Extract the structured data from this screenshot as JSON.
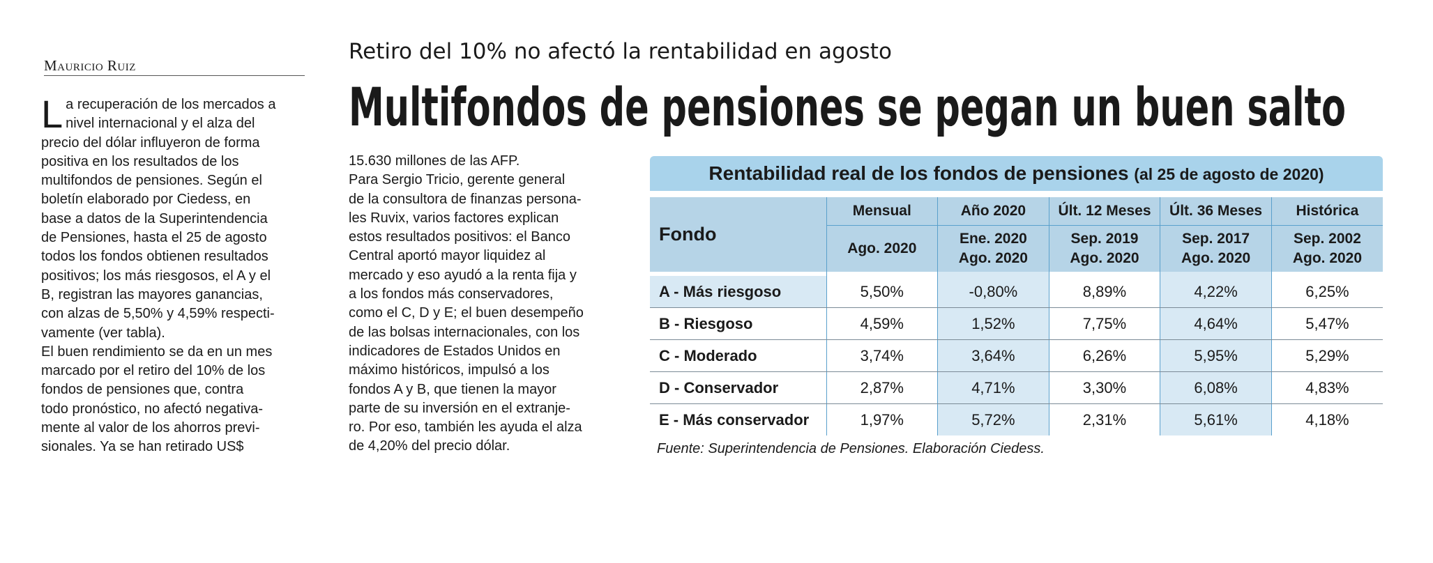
{
  "byline": "Mauricio Ruiz",
  "kicker": "Retiro del 10% no afectó la rentabilidad en agosto",
  "headline": "Multifondos de pensiones se pegan un buen salto",
  "column1": {
    "dropcap": "L",
    "lines": [
      "a recuperación de los mercados a",
      "nivel internacional y el alza del",
      "precio del dólar influyeron de forma",
      "positiva en los resultados de los",
      "multifondos de pensiones. Según el",
      "boletín elaborado por Ciedess, en",
      "base a datos de la Superintendencia",
      "de Pensiones, hasta el 25 de agosto",
      "todos los fondos obtienen resultados",
      "positivos; los más riesgosos, el A y el",
      "B, registran las mayores ganancias,",
      "con alzas de 5,50% y 4,59% respecti-",
      "vamente (ver tabla).",
      "El buen rendimiento se da en un mes",
      "marcado por el retiro del 10% de los",
      "fondos de pensiones que, contra",
      "todo pronóstico, no afectó negativa-",
      "mente al valor de los ahorros previ-",
      "sionales. Ya se han retirado US$"
    ]
  },
  "column2": {
    "lines": [
      "15.630 millones de las AFP.",
      "Para Sergio Tricio, gerente general",
      "de la consultora de finanzas persona-",
      "les Ruvix, varios factores explican",
      "estos resultados positivos: el Banco",
      "Central aportó mayor liquidez al",
      "mercado y eso ayudó a la renta fija y",
      "a los fondos más conservadores,",
      "como el C, D y E; el buen desempeño",
      "de las bolsas internacionales, con los",
      "indicadores de Estados Unidos en",
      "máximo históricos, impulsó a los",
      "fondos A y B, que tienen la mayor",
      "parte de su inversión en el extranje-",
      "ro. Por eso, también les ayuda el alza",
      "de 4,20% del precio dólar."
    ]
  },
  "table": {
    "title": "Rentabilidad real de los fondos de pensiones",
    "subtitle": "(al 25 de agosto de 2020)",
    "fondo_header": "Fondo",
    "columns": [
      {
        "top": "Mensual",
        "bottom": [
          "Ago. 2020"
        ]
      },
      {
        "top": "Año 2020",
        "bottom": [
          "Ene. 2020",
          "Ago. 2020"
        ]
      },
      {
        "top": "Últ. 12 Meses",
        "bottom": [
          "Sep. 2019",
          "Ago. 2020"
        ]
      },
      {
        "top": "Últ. 36 Meses",
        "bottom": [
          "Sep. 2017",
          "Ago. 2020"
        ]
      },
      {
        "top": "Histórica",
        "bottom": [
          "Sep. 2002",
          "Ago. 2020"
        ]
      }
    ],
    "rows": [
      {
        "label": "A - Más riesgoso",
        "values": [
          "5,50%",
          "-0,80%",
          "8,89%",
          "4,22%",
          "6,25%"
        ]
      },
      {
        "label": "B - Riesgoso",
        "values": [
          "4,59%",
          "1,52%",
          "7,75%",
          "4,64%",
          "5,47%"
        ]
      },
      {
        "label": "C - Moderado",
        "values": [
          "3,74%",
          "3,64%",
          "6,26%",
          "5,95%",
          "5,29%"
        ]
      },
      {
        "label": "D - Conservador",
        "values": [
          "2,87%",
          "4,71%",
          "3,30%",
          "6,08%",
          "4,83%"
        ]
      },
      {
        "label": "E - Más conservador",
        "values": [
          "1,97%",
          "5,72%",
          "2,31%",
          "5,61%",
          "4,18%"
        ]
      }
    ],
    "source": "Fuente: Superintendencia de Pensiones. Elaboración Ciedess."
  }
}
